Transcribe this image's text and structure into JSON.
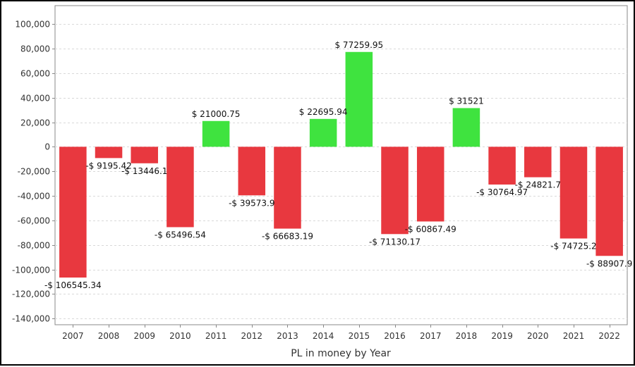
{
  "chart_data": {
    "type": "bar",
    "title": "",
    "xlabel": "PL in money by Year",
    "ylabel": "",
    "categories": [
      "2007",
      "2008",
      "2009",
      "2010",
      "2011",
      "2012",
      "2013",
      "2014",
      "2015",
      "2016",
      "2017",
      "2018",
      "2019",
      "2020",
      "2021",
      "2022"
    ],
    "values": [
      -106545.34,
      -9195.42,
      -13446.1,
      -65496.54,
      21000.75,
      -39573.9,
      -66683.19,
      22695.94,
      77259.95,
      -71130.17,
      -60867.49,
      31521,
      -30764.97,
      -24821.7,
      -74725.2,
      -88907.9
    ],
    "data_labels": [
      "-$ 106545.34",
      "-$ 9195.42",
      "-$ 13446.1",
      "-$ 65496.54",
      "$ 21000.75",
      "-$ 39573.9",
      "-$ 66683.19",
      "$ 22695.94",
      "$ 77259.95",
      "-$ 71130.17",
      "-$ 60867.49",
      "$ 31521",
      "-$ 30764.97",
      "-$ 24821.7",
      "-$ 74725.2",
      "-$ 88907.9"
    ],
    "y_ticks": [
      100000,
      80000,
      60000,
      40000,
      20000,
      0,
      -20000,
      -40000,
      -60000,
      -80000,
      -100000,
      -120000,
      -140000
    ],
    "y_tick_labels": [
      "100,000",
      "80,000",
      "60,000",
      "40,000",
      "20,000",
      "0",
      "-20,000",
      "-40,000",
      "-60,000",
      "-80,000",
      "-100,000",
      "-120,000",
      "-140,000"
    ],
    "ylim": [
      -145000,
      115000
    ],
    "grid": true,
    "colors": {
      "positive": "#3fe33f",
      "negative": "#e8383f",
      "grid": "#d9d9d9",
      "axis": "#888888"
    }
  }
}
